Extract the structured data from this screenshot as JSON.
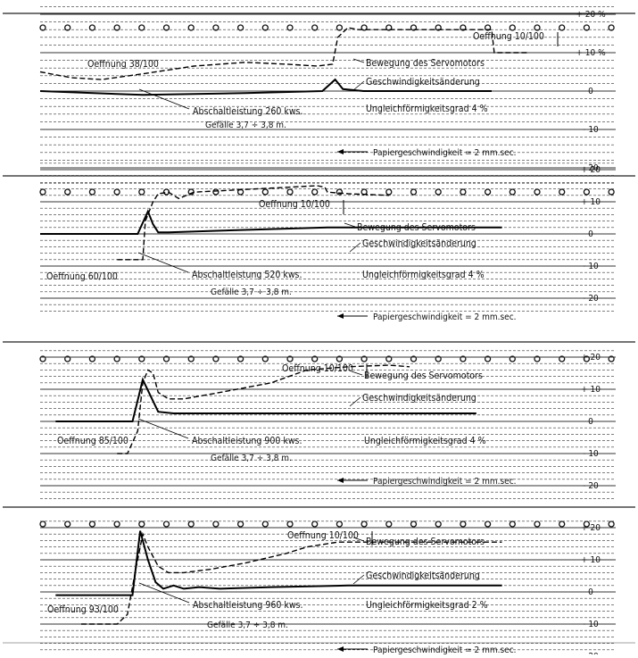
{
  "figure": {
    "panels": [
      {
        "id": "panel-1",
        "labels": {
          "opening_initial": "Oeffnung 38/100",
          "opening_final": "Oeffnung 10/100",
          "servo_label": "Bewegung des Servomotors",
          "speed_label": "Geschwindigkeitsänderung",
          "load": "Abschaltleistung 260 kws.",
          "head": "Gefälle 3,7 ÷ 3,8 m.",
          "irregularity": "Ungleichförmigkeitsgrad 4 %",
          "paper_speed": "Papiergeschwindigkeit = 2 mm.sec."
        },
        "scale_ticks": [
          "+ 20 %",
          "+ 10 %",
          "0",
          "- 10",
          "- 20"
        ],
        "chart_data": {
          "type": "line",
          "title": "",
          "xlabel": "Papiergeschwindigkeit = 2 mm.sec.",
          "ylabel": "",
          "ylim": [
            -20,
            20
          ],
          "series": [
            {
              "name": "Bewegung des Servomotors",
              "values": [
                [
                  0,
                  5
                ],
                [
                  6,
                  3.5
                ],
                [
                  12,
                  3
                ],
                [
                  20,
                  4.5
                ],
                [
                  30,
                  6.5
                ],
                [
                  40,
                  7.5
                ],
                [
                  48,
                  7
                ],
                [
                  54,
                  6.5
                ],
                [
                  57,
                  7
                ],
                [
                  58,
                  14
                ],
                [
                  60,
                  16.5
                ],
                [
                  62,
                  16
                ],
                [
                  70,
                  16
                ],
                [
                  80,
                  16
                ],
                [
                  88,
                  16
                ],
                [
                  88.5,
                  10
                ],
                [
                  95,
                  10
                ]
              ]
            },
            {
              "name": "Geschwindigkeitsänderung",
              "values": [
                [
                  0,
                  0
                ],
                [
                  20,
                  -1
                ],
                [
                  40,
                  -0.5
                ],
                [
                  55,
                  0
                ],
                [
                  57.5,
                  3
                ],
                [
                  59,
                  0.5
                ],
                [
                  63,
                  0
                ],
                [
                  70,
                  0
                ],
                [
                  88,
                  0
                ]
              ]
            }
          ]
        }
      },
      {
        "id": "panel-2",
        "labels": {
          "opening_initial": "Oeffnung 60/100",
          "opening_final": "Oeffnung 10/100",
          "servo_label": "Bewegung des Servomotors",
          "speed_label": "Geschwindigkeitsänderung",
          "load": "Abschaltleistung 520 kws.",
          "head": "Gefälle 3,7 ÷ 3,8 m.",
          "irregularity": "Ungleichförmigkeitsgrad 4 %",
          "paper_speed": "Papiergeschwindigkeit = 2 mm.sec."
        },
        "scale_ticks": [
          "+ 20",
          "+ 10",
          "0",
          "- 10",
          "- 20"
        ],
        "chart_data": {
          "type": "line",
          "title": "",
          "xlabel": "Papiergeschwindigkeit = 2 mm.sec.",
          "ylabel": "",
          "ylim": [
            -20,
            20
          ],
          "series": [
            {
              "name": "Bewegung des Servomotors",
              "values": [
                [
                  15,
                  -8
                ],
                [
                  20,
                  -8
                ],
                [
                  20.5,
                  4
                ],
                [
                  22,
                  10
                ],
                [
                  23,
                  12.5
                ],
                [
                  25,
                  13
                ],
                [
                  27,
                  11
                ],
                [
                  30,
                  13
                ],
                [
                  36,
                  13.5
                ],
                [
                  48,
                  14.5
                ],
                [
                  54,
                  15
                ],
                [
                  55.5,
                  14.5
                ],
                [
                  56,
                  13
                ],
                [
                  60,
                  12.5
                ],
                [
                  68,
                  12
                ]
              ]
            },
            {
              "name": "Geschwindigkeitsänderung",
              "values": [
                [
                  0,
                  0
                ],
                [
                  19,
                  0
                ],
                [
                  21,
                  7
                ],
                [
                  22,
                  3
                ],
                [
                  23,
                  0.5
                ],
                [
                  25,
                  0.5
                ],
                [
                  35,
                  1
                ],
                [
                  45,
                  1.5
                ],
                [
                  56,
                  2
                ],
                [
                  62,
                  2
                ],
                [
                  90,
                  2
                ]
              ]
            }
          ]
        }
      },
      {
        "id": "panel-3",
        "labels": {
          "opening_initial": "Oeffnung 85/100",
          "opening_final": "Oeffnung 10/100",
          "servo_label": "Bewegung des Servomotors",
          "speed_label": "Geschwindigkeitsänderung",
          "load": "Abschaltleistung 900 kws.",
          "head": "Gefälle 3,7 ÷ 3,8 m.",
          "irregularity": "Ungleichförmigkeitsgrad 4 %",
          "paper_speed": "Papiergeschwindigkeit = 2 mm.sec."
        },
        "scale_ticks": [
          "+ 20",
          "+ 10",
          "0",
          "- 10",
          "- 20"
        ],
        "chart_data": {
          "type": "line",
          "title": "",
          "xlabel": "Papiergeschwindigkeit = 2 mm.sec.",
          "ylabel": "",
          "ylim": [
            -20,
            20
          ],
          "series": [
            {
              "name": "Bewegung des Servomotors",
              "values": [
                [
                  15,
                  -10
                ],
                [
                  17,
                  -10
                ],
                [
                  19,
                  -3
                ],
                [
                  20,
                  12
                ],
                [
                  21,
                  16
                ],
                [
                  22,
                  15
                ],
                [
                  23,
                  9
                ],
                [
                  25,
                  7
                ],
                [
                  28,
                  7
                ],
                [
                  35,
                  9
                ],
                [
                  45,
                  12
                ],
                [
                  52,
                  16
                ],
                [
                  60,
                  17
                ],
                [
                  68,
                  17.5
                ],
                [
                  72,
                  17
                ]
              ]
            },
            {
              "name": "Geschwindigkeitsänderung",
              "values": [
                [
                  3,
                  0
                ],
                [
                  18,
                  0
                ],
                [
                  20,
                  13
                ],
                [
                  21.5,
                  8
                ],
                [
                  23,
                  3
                ],
                [
                  26,
                  2.5
                ],
                [
                  40,
                  2.5
                ],
                [
                  60,
                  2.5
                ],
                [
                  85,
                  2.5
                ]
              ]
            }
          ]
        }
      },
      {
        "id": "panel-4",
        "labels": {
          "opening_initial": "Oeffnung 93/100",
          "opening_final": "Oeffnung 10/100",
          "servo_label": "Bewegung des Servomotors",
          "speed_label": "Geschwindigkeitsänderung",
          "load": "Abschaltleistung 960 kws.",
          "head": "Gefälle 3,7 ÷ 3,8 m.",
          "irregularity": "Ungleichförmigkeitsgrad 2 %",
          "paper_speed": "Papiergeschwindigkeit = 2 mm.sec."
        },
        "scale_ticks": [
          "+ 20",
          "+ 10",
          "0",
          "- 10",
          "- 20"
        ],
        "chart_data": {
          "type": "line",
          "title": "",
          "xlabel": "Papiergeschwindigkeit = 2 mm.sec.",
          "ylabel": "",
          "ylim": [
            -20,
            20
          ],
          "series": [
            {
              "name": "Bewegung des Servomotors",
              "values": [
                [
                  8,
                  -10
                ],
                [
                  15,
                  -10
                ],
                [
                  17,
                  -7
                ],
                [
                  18.5,
                  6
                ],
                [
                  20,
                  18
                ],
                [
                  21,
                  14
                ],
                [
                  23,
                  8
                ],
                [
                  25,
                  6
                ],
                [
                  28,
                  6
                ],
                [
                  33,
                  7
                ],
                [
                  40,
                  9
                ],
                [
                  48,
                  12
                ],
                [
                  52,
                  14
                ],
                [
                  58,
                  15.5
                ],
                [
                  65,
                  15.5
                ],
                [
                  90,
                  15.5
                ]
              ]
            },
            {
              "name": "Geschwindigkeitsänderung",
              "values": [
                [
                  3,
                  -1
                ],
                [
                  18,
                  -1
                ],
                [
                  19.5,
                  19
                ],
                [
                  21,
                  10
                ],
                [
                  22.5,
                  3
                ],
                [
                  24,
                  1
                ],
                [
                  26,
                  2
                ],
                [
                  28,
                  1
                ],
                [
                  31,
                  1.5
                ],
                [
                  35,
                  1
                ],
                [
                  45,
                  1.5
                ],
                [
                  60,
                  2
                ],
                [
                  90,
                  2
                ]
              ]
            }
          ]
        }
      }
    ]
  }
}
